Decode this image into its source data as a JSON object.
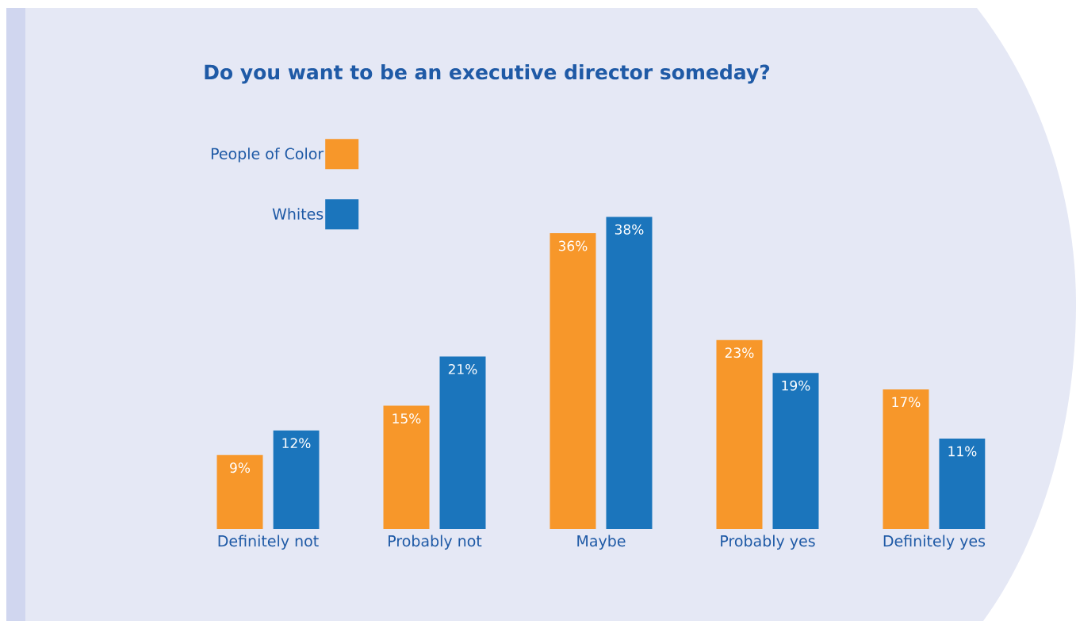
{
  "chart_data": {
    "type": "bar",
    "title": "Do you want to be an executive director someday?",
    "categories": [
      "Definitely not",
      "Probably not",
      "Maybe",
      "Probably yes",
      "Definitely yes"
    ],
    "series": [
      {
        "name": "People of Color",
        "color": "#f7972a",
        "values": [
          9,
          15,
          36,
          23,
          17
        ],
        "value_labels": [
          "9%",
          "15%",
          "36%",
          "23%",
          "17%"
        ]
      },
      {
        "name": "Whites",
        "color": "#1b75bc",
        "values": [
          12,
          21,
          38,
          19,
          11
        ],
        "value_labels": [
          "12%",
          "21%",
          "38%",
          "19%",
          "11%"
        ]
      }
    ],
    "legend": "top left"
  }
}
